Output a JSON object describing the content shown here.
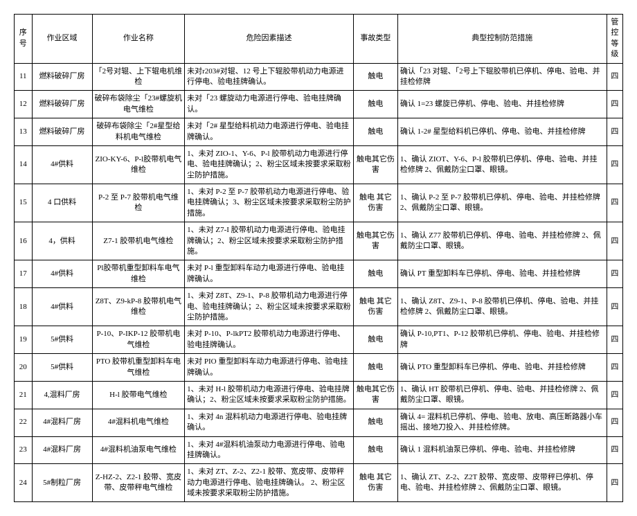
{
  "columns": [
    "序号",
    "作业区域",
    "作业名称",
    "危险因素描述",
    "事故类型",
    "典型控制防范措施",
    "管控等级"
  ],
  "rows": [
    {
      "seq": "11",
      "area": "燃料破碎厂房",
      "name": "「2号对辊、上下辊电机维检",
      "desc": "未对r203#对辊、12 号上下辊胶带机动力电源进行停电、验电挂牌确认。",
      "type": "触电",
      "measure": "确认「23 对辊、「2号上下辊胶带机已停机、停电、验电、并挂检修牌",
      "level": "四"
    },
    {
      "seq": "12",
      "area": "燃料破碎厂房",
      "name": "破碎布袋除尘「23#螺旋机电气维检",
      "desc": "未对「23 螺旋动力电源进行停电、验电挂牌确认。",
      "type": "触电",
      "measure": "确认 1=23 螺旋已停机、停电、验电、并挂检修牌",
      "level": "四"
    },
    {
      "seq": "13",
      "area": "燃料破碎厂房",
      "name": "破碎布袋除尘「2#星型给料机电气维检",
      "desc": "未对「2# 星型给料机动力电源进行停电、验电挂牌确认。",
      "type": "触电",
      "measure": "确认 1-2# 星型给料机已停机、停电、验电、并挂检修牌",
      "level": "四"
    },
    {
      "seq": "14",
      "area": "4#供料",
      "name": "ZIO-KY-6、P-l胶带机电气维检",
      "desc": "1、未对 ZIO-1、Y-6、P-l 胶带机动力电源进行停电、验电挂牌确认；2、粉尘区域未按要求采取粉尘防护措施。",
      "type": "触电其它伤害",
      "measure": "1、确认 ZIOT、Y-6、P-l 胶带机已停机、停电、验电、并挂检修牌 2、佩戴防尘口罩、眼镜。",
      "level": "四"
    },
    {
      "seq": "15",
      "area": "4 口供料",
      "name": "P-2 至 P-7 胶带机电气维检",
      "desc": "1、未对 P-2 至 P-7 胶带机动力电源进行停电、验电挂牌确认；3、粉尘区域未按要求采取粉尘防护措施。",
      "type": "触电 其它伤害",
      "measure": "1、确认 P-2 至 P-7 胶带机已停机、停电、验电、并挂检修牌 2、佩戴防尘口罩、眼镜。",
      "level": "四"
    },
    {
      "seq": "16",
      "area": "4，供料",
      "name": "Z7-1 胶带机电气维检",
      "desc": "1、未对 Z7-I 胶带机动力电源进行停电、验电挂牌确认；2、粉尘区域未按要求采取粉尘防护措施。",
      "type": "触电其它伤害",
      "measure": "1、确认 Z77 胶带机已停机、停电、验电、并挂检修牌 2、佩戴防尘口罩、眼镜。",
      "level": "四"
    },
    {
      "seq": "17",
      "area": "4#供料",
      "name": "Pl胶带机重型卸料车电气维检",
      "desc": "未对 P-l 重型卸料车动力电源进行停电、验电挂牌确认。",
      "type": "触电",
      "measure": "确认 PT 重型卸料车已停机、停电、验电、并挂检修牌",
      "level": "四"
    },
    {
      "seq": "18",
      "area": "4#供料",
      "name": "Z8T、Z9-kP-8 胶带机电气维检",
      "desc": "1、未对 Z8T、Z9-1、P-8 胶带机动力电源进行停电、验电挂牌确认；2、粉尘区域未按要求采取粉尘防护措施。",
      "type": "触电 其它伤害",
      "measure": "1、确认 Z8T、Z9-1、P-8 胶带机已停机、停电、验电、并挂检修牌 2、佩戴防尘口罩、眼镜。",
      "level": "四"
    },
    {
      "seq": "19",
      "area": "5#供料",
      "name": "P-10、P-IKP-12 胶带机电气维检",
      "desc": "未对 P-10、P-lkPT2 胶带机动力电源进行停电、验电挂牌确认。",
      "type": "触电",
      "measure": "确认 P-10,PT1、P-12 胶带机已停机、停电、验电、并挂检修牌",
      "level": "四"
    },
    {
      "seq": "20",
      "area": "5#供料",
      "name": "PTO 胶带机重型卸料车电气维检",
      "desc": "未对 PIO 重型卸料车动力电源进行停电、验电挂牌确认。",
      "type": "触电",
      "measure": "确认 PTO 重型卸料车已停机、停电、验电、并挂检修牌",
      "level": "四"
    },
    {
      "seq": "21",
      "area": "4,混料厂房",
      "name": "H-l 胶带电气维检",
      "desc": "1、未对 H-l 胶带机动力电源进行停电、验电挂牌确认；2、粉尘区域未按要求采取粉尘防护措施。",
      "type": "触电其它伤害",
      "measure": "1、确认 HT 胶带机已停机、停电、验电、并挂检修牌 2、佩戴防尘口罩、眼镜。",
      "level": "四"
    },
    {
      "seq": "22",
      "area": "4#混料厂房",
      "name": "4#混料机电气维检",
      "desc": "1、未对 4n 混料机动力电源进行停电、验电挂牌确认。",
      "type": "触电",
      "measure": "确认 4= 混料机已停机、停电、验电、放电、高压断路器小车摇出、接地刀投入、并挂检修牌。",
      "level": "四"
    },
    {
      "seq": "23",
      "area": "4#混料厂房",
      "name": "4#混料机油泵电气维检",
      "desc": "1、未对 4#混料机油泵动力电源进行停电、验电挂牌确认。",
      "type": "触电",
      "measure": "确认 1 混料机油泵已停机、停电、验电、并挂检修牌",
      "level": "四"
    },
    {
      "seq": "24",
      "area": "5#制粒厂房",
      "name": "Z-HZ-2、Z2-1 胶带、宽皮带、皮带秤电气维检",
      "desc": "1、未对 ZT、Z-2、Z2-1 胶带、宽皮带、皮带秤动力电源进行停电、验电挂牌确认。 2、粉尘区域未按要求采取粉尘防护措施。",
      "type": "触电 其它伤害",
      "measure": "1、确认 ZT、Z-2、Z2T 胶带、宽皮带、皮带秤已停机、停电、验电、并挂检修牌 2、佩戴防尘口罩、眼镜。",
      "level": "四"
    }
  ]
}
